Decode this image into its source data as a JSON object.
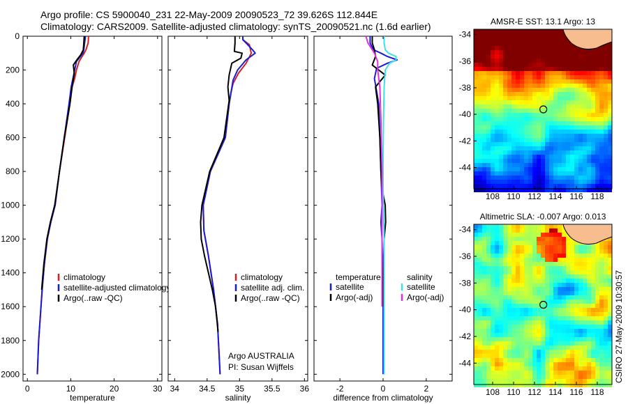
{
  "figure": {
    "title_line1": "Argo profile: CS 5900040_231 22-May-2009 20090523_72 39.626S 112.844E",
    "title_line2": "Climatology: CARS2009. Satellite-adjusted climatology: synTS_20090521.nc (1.6d earlier)",
    "credit": "CSIRO 27-May-2009 10:30:57",
    "argo_credit_line1": "Argo AUSTRALIA",
    "argo_credit_line2": "PI: Susan Wijffels"
  },
  "colors": {
    "climatology": "#d42020",
    "satellite": "#1a1ad9",
    "argo": "#000000",
    "cyan": "#3fe0e8",
    "magenta": "#e030e0"
  },
  "chart_data": [
    {
      "type": "line",
      "id": "temperature",
      "xlabel": "temperature",
      "xlim": [
        -1,
        31
      ],
      "ylim": [
        2040,
        0
      ],
      "xticks": [
        0,
        10,
        20,
        30
      ],
      "xtick_labels": [
        "0",
        "10",
        "20",
        "30"
      ],
      "yticks": [
        0,
        200,
        400,
        600,
        800,
        1000,
        1200,
        1400,
        1600,
        1800,
        2000
      ],
      "ytick_labels": [
        "0",
        "200",
        "400",
        "600",
        "800",
        "1000",
        "1200",
        "1400",
        "1600",
        "1800",
        "2000"
      ],
      "legend": [
        "climatology",
        "satellite-adjusted climatology",
        "Argo(..raw -QC)"
      ],
      "series": [
        {
          "name": "climatology",
          "color": "#d42020",
          "x": [
            14.1,
            14.0,
            13.5,
            13.1,
            12.6,
            11.9,
            11.3,
            10.9,
            10.3,
            9.8,
            8.6,
            7.4,
            6.4,
            5.4,
            4.6,
            3.9,
            3.4,
            3.0,
            2.6,
            2.3
          ],
          "y": [
            0,
            40,
            80,
            100,
            120,
            150,
            200,
            250,
            300,
            400,
            600,
            800,
            1000,
            1100,
            1200,
            1350,
            1500,
            1650,
            1800,
            2000
          ]
        },
        {
          "name": "satellite-adjusted climatology",
          "color": "#1a1ad9",
          "x": [
            13.4,
            13.2,
            13.0,
            12.8,
            12.2,
            11.3,
            10.9,
            10.5,
            10.1,
            9.6,
            8.5,
            7.4,
            6.4,
            5.4,
            4.6,
            3.9,
            3.4,
            3.0,
            2.6,
            2.3
          ],
          "y": [
            0,
            40,
            80,
            100,
            120,
            150,
            200,
            250,
            300,
            400,
            600,
            800,
            1000,
            1100,
            1200,
            1350,
            1500,
            1650,
            1800,
            2000
          ]
        },
        {
          "name": "Argo(..raw -QC)",
          "color": "#000000",
          "x": [
            13.1,
            13.0,
            12.9,
            12.3,
            11.4,
            10.6,
            10.8,
            10.3,
            9.8,
            8.5,
            7.4,
            6.3,
            5.3,
            4.5,
            3.8,
            3.3
          ],
          "y": [
            0,
            40,
            80,
            110,
            140,
            170,
            220,
            300,
            400,
            600,
            800,
            1000,
            1100,
            1200,
            1350,
            1500
          ]
        }
      ]
    },
    {
      "type": "line",
      "id": "salinity",
      "xlabel": "salinity",
      "xlim": [
        33.9,
        36.05
      ],
      "ylim": [
        2040,
        0
      ],
      "xticks": [
        34,
        34.5,
        35,
        35.5,
        36
      ],
      "xtick_labels": [
        "34",
        "34.5",
        "35",
        "35.5",
        "36"
      ],
      "legend": [
        "climatology",
        "satellite adj. clim.",
        "Argo(..raw -QC)"
      ],
      "series": [
        {
          "name": "climatology",
          "color": "#d42020",
          "x": [
            35.05,
            35.05,
            35.15,
            35.18,
            35.1,
            34.98,
            34.9,
            34.87,
            34.84,
            34.78,
            34.55,
            34.44,
            34.45,
            34.52,
            34.6,
            34.66,
            34.68,
            34.7
          ],
          "y": [
            0,
            20,
            50,
            100,
            160,
            220,
            280,
            330,
            400,
            600,
            800,
            1000,
            1150,
            1300,
            1500,
            1700,
            1850,
            2000
          ]
        },
        {
          "name": "satellite adj. clim.",
          "color": "#1a1ad9",
          "x": [
            35.05,
            35.05,
            35.1,
            35.2,
            35.24,
            35.1,
            34.97,
            34.9,
            34.87,
            34.84,
            34.78,
            34.55,
            34.44,
            34.45,
            34.52,
            34.6,
            34.66,
            34.68,
            34.7
          ],
          "y": [
            0,
            20,
            40,
            80,
            100,
            140,
            200,
            260,
            330,
            400,
            600,
            800,
            1000,
            1150,
            1300,
            1500,
            1700,
            1850,
            2000
          ]
        },
        {
          "name": "Argo(..raw -QC)",
          "color": "#000000",
          "x": [
            34.93,
            34.93,
            34.92,
            35.04,
            35.02,
            34.88,
            34.84,
            34.82,
            34.84,
            34.76,
            34.54,
            34.42,
            34.4,
            34.41,
            34.46,
            34.52,
            34.58,
            34.63,
            34.67
          ],
          "y": [
            0,
            40,
            90,
            100,
            130,
            160,
            230,
            300,
            380,
            600,
            800,
            1000,
            1100,
            1200,
            1300,
            1400,
            1500,
            1600,
            1750
          ]
        }
      ]
    },
    {
      "type": "line",
      "id": "difference",
      "xlabel": "difference from climatology",
      "xlim": [
        -3.2,
        3.2
      ],
      "ylim": [
        2040,
        0
      ],
      "xticks": [
        -2,
        0,
        2
      ],
      "xtick_labels": [
        "-2",
        "0",
        "2"
      ],
      "legend_left_header": "temperature",
      "legend_right_header": "salinity",
      "legend": [
        "satellite",
        "Argo(-adj)",
        "satellite",
        "Argo(-adj)"
      ],
      "series": [
        {
          "name": "temperature satellite",
          "color": "#1a1ad9",
          "x": [
            -0.6,
            -0.6,
            -0.45,
            -0.1,
            0.2,
            0.65,
            0.2,
            -0.3,
            -0.4,
            -0.2,
            -0.15,
            -0.1,
            -0.05,
            -0.1,
            -0.05,
            0,
            0,
            0
          ],
          "y": [
            0,
            40,
            80,
            100,
            120,
            140,
            160,
            190,
            250,
            400,
            600,
            800,
            1000,
            1100,
            1200,
            1500,
            1800,
            2000
          ]
        },
        {
          "name": "temperature Argo(-adj)",
          "color": "#000000",
          "x": [
            -0.5,
            -0.5,
            -0.4,
            -0.35,
            -0.5,
            0.1,
            -0.35,
            -0.25,
            -0.15,
            -0.1,
            -0.05,
            0.1,
            0.12,
            0.05,
            0,
            0
          ],
          "y": [
            0,
            40,
            80,
            120,
            170,
            230,
            300,
            400,
            600,
            800,
            900,
            1000,
            1100,
            1200,
            1500,
            1600
          ]
        },
        {
          "name": "salinity satellite",
          "color": "#3fe0e8",
          "x": [
            0.05,
            0.05,
            0.1,
            0.25,
            0.6,
            0.6,
            0.3,
            0.1,
            0.05,
            0.02,
            0,
            0,
            0.05,
            0.05,
            0.05,
            0.05
          ],
          "y": [
            0,
            40,
            80,
            100,
            120,
            140,
            160,
            200,
            300,
            500,
            700,
            900,
            1200,
            1500,
            1800,
            2000
          ]
        },
        {
          "name": "salinity Argo(-adj)",
          "color": "#e030e0",
          "x": [
            -0.8,
            -0.7,
            -0.5,
            -0.4,
            -0.25,
            -0.25,
            -0.15,
            -0.1,
            -0.05,
            -0.05,
            -0.05
          ],
          "y": [
            0,
            40,
            80,
            100,
            150,
            200,
            300,
            500,
            800,
            1200,
            1600
          ]
        }
      ]
    },
    {
      "type": "heatmap",
      "id": "sst_map",
      "title": "AMSR-E SST: 13.1 Argo: 13",
      "xlim": [
        106.2,
        119.4
      ],
      "ylim": [
        -45.6,
        -33.6
      ],
      "xticks": [
        108,
        110,
        112,
        114,
        116,
        118
      ],
      "xtick_labels": [
        "108",
        "110",
        "112",
        "114",
        "116",
        "118"
      ],
      "yticks": [
        -34,
        -36,
        -38,
        -40,
        -42,
        -44
      ],
      "ytick_labels": [
        "-34",
        "-36",
        "-38",
        "-40",
        "-42",
        "-44"
      ],
      "marker": {
        "lon": 112.844,
        "lat": -39.626
      }
    },
    {
      "type": "heatmap",
      "id": "sla_map",
      "title": "Altimetric SLA: -0.007 Argo: 0.013",
      "xlim": [
        106.2,
        119.4
      ],
      "ylim": [
        -45.6,
        -33.6
      ],
      "xticks": [
        108,
        110,
        112,
        114,
        116,
        118
      ],
      "xtick_labels": [
        "108",
        "110",
        "112",
        "114",
        "116",
        "118"
      ],
      "yticks": [
        -34,
        -36,
        -38,
        -40,
        -42,
        -44
      ],
      "ytick_labels": [
        "-34",
        "-36",
        "-38",
        "-40",
        "-42",
        "-44"
      ],
      "marker": {
        "lon": 112.844,
        "lat": -39.626
      }
    }
  ]
}
